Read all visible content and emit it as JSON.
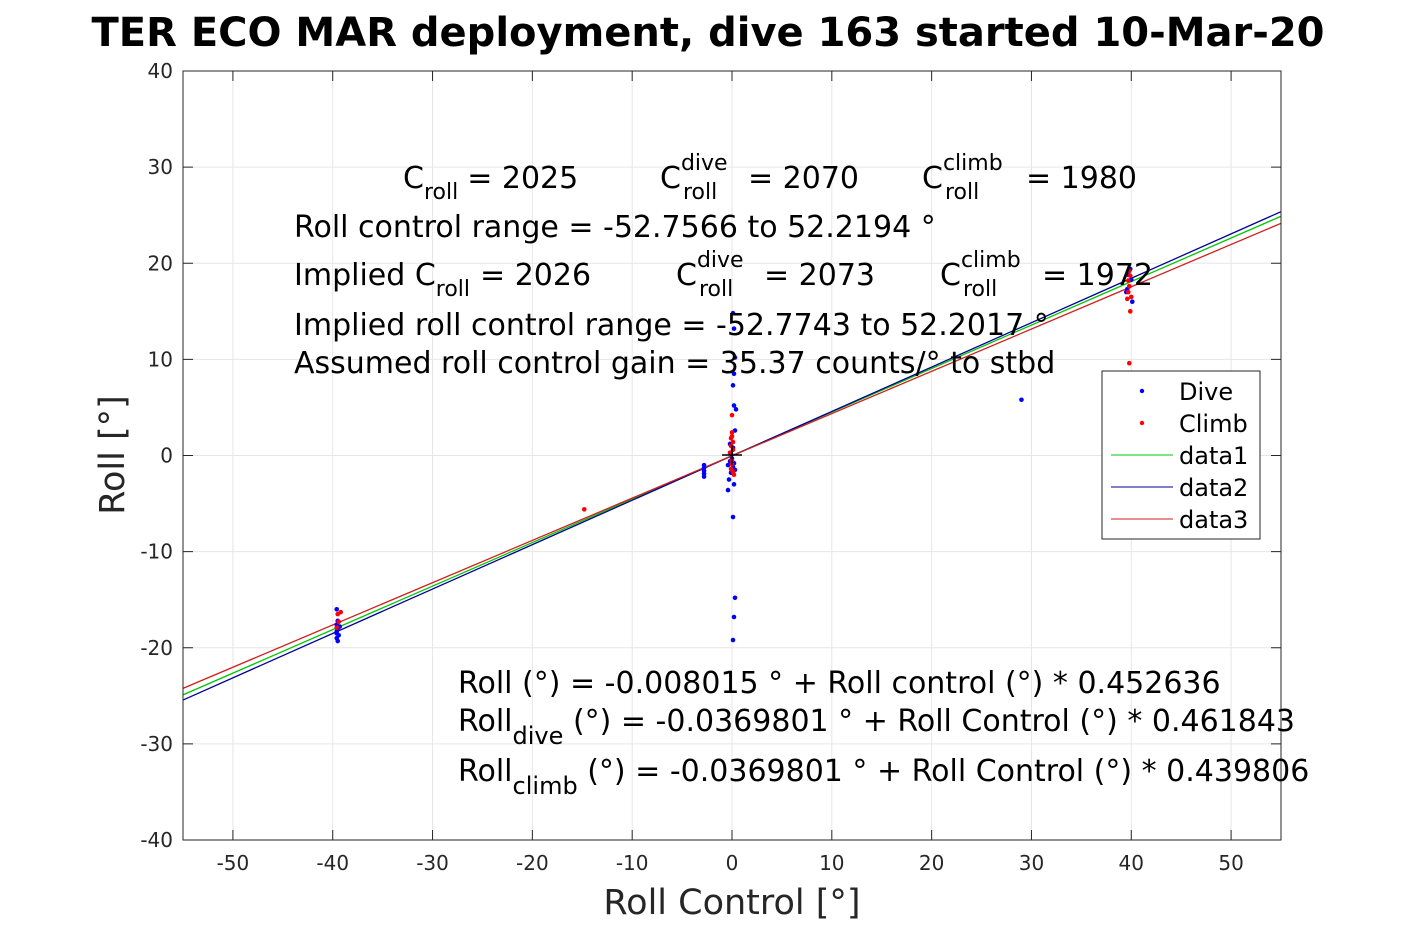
{
  "chart_data": {
    "type": "scatter",
    "title": "TER ECO MAR deployment, dive 163 started 10-Mar-20",
    "xlabel": "Roll Control [°]",
    "ylabel": "Roll [°]",
    "xlim": [
      -55,
      55
    ],
    "ylim": [
      -40,
      40
    ],
    "xticks": [
      -50,
      -40,
      -30,
      -20,
      -10,
      0,
      10,
      20,
      30,
      40,
      50
    ],
    "yticks": [
      -40,
      -30,
      -20,
      -10,
      0,
      10,
      20,
      30,
      40
    ],
    "grid": true,
    "legend_position": "right, below annotations",
    "legend": [
      "Dive",
      "Climb",
      "data1",
      "data2",
      "data3"
    ],
    "colors": {
      "dive": "#0000ff",
      "climb": "#ff0000",
      "data1": "#00c800",
      "data2": "#000096",
      "data3": "#d21e1e",
      "axis": "#262626",
      "grid": "#e6e6e6"
    },
    "series": [
      {
        "name": "Dive",
        "kind": "points",
        "points": [
          [
            -39.6,
            -16.0
          ],
          [
            -39.5,
            -17.2
          ],
          [
            -39.6,
            -17.6
          ],
          [
            -39.5,
            -18.0
          ],
          [
            -39.6,
            -18.3
          ],
          [
            -39.4,
            -18.7
          ],
          [
            -39.6,
            -19.0
          ],
          [
            -39.5,
            -19.3
          ],
          [
            -39.3,
            -17.8
          ],
          [
            -39.6,
            -18.5
          ],
          [
            -2.8,
            -1.0
          ],
          [
            -2.8,
            -1.3
          ],
          [
            -2.8,
            -1.6
          ],
          [
            -2.8,
            -1.9
          ],
          [
            -2.8,
            -2.2
          ],
          [
            -0.4,
            -1.0
          ],
          [
            -0.3,
            -2.5
          ],
          [
            -0.4,
            -3.6
          ],
          [
            -0.1,
            -1.8
          ],
          [
            -0.2,
            -0.6
          ],
          [
            0.0,
            -0.3
          ],
          [
            0.1,
            -1.2
          ],
          [
            -0.1,
            0.2
          ],
          [
            0.2,
            -0.8
          ],
          [
            0.1,
            0.8
          ],
          [
            -0.2,
            1.2
          ],
          [
            0.3,
            -1.5
          ],
          [
            0.1,
            14.8
          ],
          [
            0.2,
            13.2
          ],
          [
            0.3,
            10.2
          ],
          [
            0.2,
            8.5
          ],
          [
            0.1,
            7.3
          ],
          [
            0.2,
            5.2
          ],
          [
            0.4,
            4.8
          ],
          [
            0.3,
            2.6
          ],
          [
            0.2,
            -3.0
          ],
          [
            0.1,
            -6.4
          ],
          [
            0.3,
            -14.8
          ],
          [
            0.2,
            -16.8
          ],
          [
            0.1,
            -19.2
          ],
          [
            29.0,
            5.8
          ],
          [
            39.5,
            17.0
          ],
          [
            39.8,
            17.6
          ],
          [
            40.0,
            18.3
          ],
          [
            39.7,
            18.8
          ],
          [
            39.9,
            19.4
          ],
          [
            40.1,
            16.0
          ],
          [
            39.6,
            17.3
          ]
        ]
      },
      {
        "name": "Climb",
        "kind": "points",
        "points": [
          [
            -39.5,
            -16.5
          ],
          [
            -39.4,
            -17.3
          ],
          [
            -39.6,
            -17.9
          ],
          [
            -39.2,
            -16.3
          ],
          [
            -14.8,
            -5.6
          ],
          [
            -0.2,
            0.3
          ],
          [
            0.0,
            -0.5
          ],
          [
            -0.1,
            1.0
          ],
          [
            0.1,
            1.4
          ],
          [
            0.0,
            2.0
          ],
          [
            -0.1,
            -1.4
          ],
          [
            0.2,
            -2.0
          ],
          [
            0.1,
            0.6
          ],
          [
            0.0,
            -0.9
          ],
          [
            -0.1,
            1.8
          ],
          [
            0.0,
            2.4
          ],
          [
            0.1,
            -1.7
          ],
          [
            0.0,
            4.2
          ],
          [
            39.8,
            9.6
          ],
          [
            39.9,
            15.0
          ],
          [
            39.6,
            16.3
          ],
          [
            39.7,
            17.0
          ],
          [
            39.8,
            17.6
          ],
          [
            39.7,
            18.2
          ],
          [
            39.9,
            18.7
          ],
          [
            39.8,
            19.2
          ],
          [
            40.0,
            16.5
          ]
        ]
      },
      {
        "name": "data1",
        "kind": "line",
        "intercept": -0.008015,
        "slope": 0.452636
      },
      {
        "name": "data2",
        "kind": "line",
        "intercept": -0.0369801,
        "slope": 0.461843
      },
      {
        "name": "data3",
        "kind": "line",
        "intercept": -0.0369801,
        "slope": 0.439806
      }
    ],
    "annotations": {
      "c_roll_label": "C",
      "c_roll_sub": "roll",
      "c_roll_value": "= 2025",
      "c_dive_label": "C",
      "c_dive_sup": "dive",
      "c_dive_sub": "roll",
      "c_dive_value": "= 2070",
      "c_climb_label": "C",
      "c_climb_sup": "climb",
      "c_climb_sub": "roll",
      "c_climb_value": "= 1980",
      "roll_control_range": "Roll control range = -52.7566 to 52.2194 °",
      "implied_c_roll_label": "Implied C",
      "implied_c_roll_sub": "roll",
      "implied_c_roll_value": "= 2026",
      "implied_c_dive_label": "C",
      "implied_c_dive_sup": "dive",
      "implied_c_dive_sub": "roll",
      "implied_c_dive_value": "= 2073",
      "implied_c_climb_label": "C",
      "implied_c_climb_sup": "climb",
      "implied_c_climb_sub": "roll",
      "implied_c_climb_value": "= 1972",
      "implied_range": "Implied roll control range = -52.7743 to 52.2017 °",
      "assumed_gain": "Assumed roll control gain = 35.37 counts/° to stbd",
      "fit_all": "Roll (°) = -0.008015 ° + Roll control (°) * 0.452636",
      "fit_dive_label": "Roll",
      "fit_dive_sub": "dive",
      "fit_dive_rest": " (°) = -0.0369801 ° + Roll Control (°) * 0.461843",
      "fit_climb_label": "Roll",
      "fit_climb_sub": "climb",
      "fit_climb_rest": " (°) = -0.0369801 ° + Roll Control (°) * 0.439806"
    }
  }
}
